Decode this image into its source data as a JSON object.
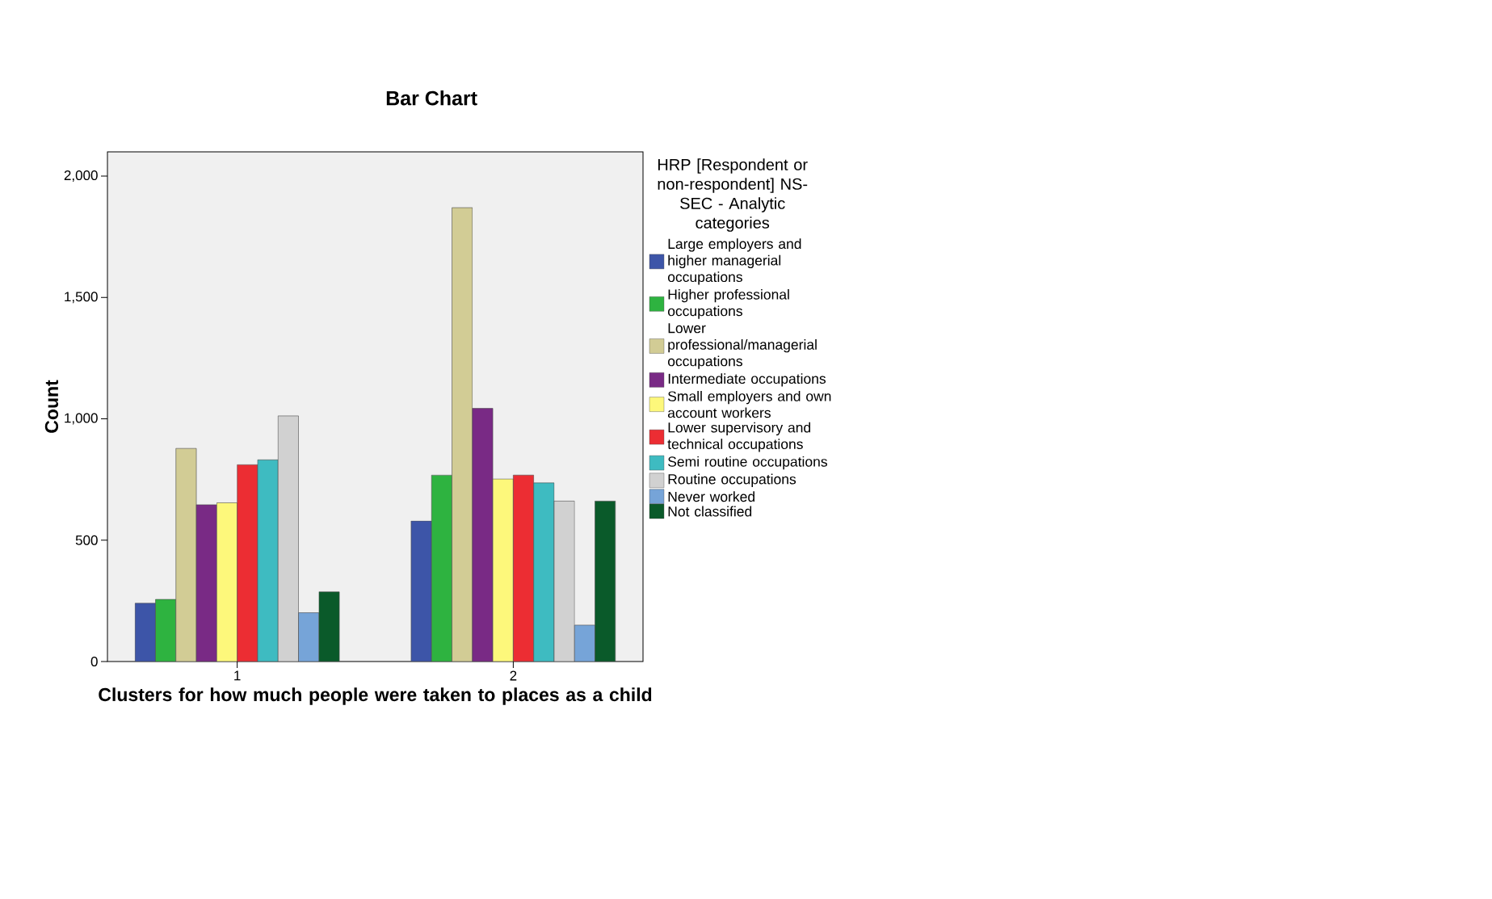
{
  "chart_data": {
    "type": "bar",
    "title": "Bar Chart",
    "xlabel": "Clusters for how much people were taken to places as a child",
    "ylabel": "Count",
    "legend_title": "HRP [Respondent or non-respondent] NS-SEC - Analytic categories",
    "legend": "right",
    "categories": [
      "1",
      "2"
    ],
    "ylim": [
      0,
      2100
    ],
    "yticks": [
      0,
      500,
      {
        "value": 1000,
        "label": "1,000"
      },
      {
        "value": 1500,
        "label": "1,500"
      },
      {
        "value": 2000,
        "label": "2,000"
      }
    ],
    "series": [
      {
        "name": "Large employers and higher managerial occupations",
        "color": "#3d55a8",
        "values": [
          240,
          579
        ]
      },
      {
        "name": "Higher professional occupations",
        "color": "#2eb340",
        "values": [
          256,
          768
        ]
      },
      {
        "name": "Lower professional/managerial occupations",
        "color": "#d2cc95",
        "values": [
          878,
          1870
        ]
      },
      {
        "name": "Intermediate occupations",
        "color": "#792a85",
        "values": [
          646,
          1043
        ]
      },
      {
        "name": "Small employers and own account workers",
        "color": "#fdf87b",
        "values": [
          654,
          752
        ]
      },
      {
        "name": "Lower supervisory and technical occupations",
        "color": "#ec2d33",
        "values": [
          811,
          768
        ]
      },
      {
        "name": "Semi routine occupations",
        "color": "#3ebbc1",
        "values": [
          831,
          736
        ]
      },
      {
        "name": "Routine occupations",
        "color": "#d1d1d1",
        "values": [
          1012,
          661
        ]
      },
      {
        "name": "Never worked",
        "color": "#76a4d8",
        "values": [
          201,
          150
        ]
      },
      {
        "name": "Not classified",
        "color": "#0a5a2a",
        "values": [
          287,
          661
        ]
      }
    ]
  }
}
